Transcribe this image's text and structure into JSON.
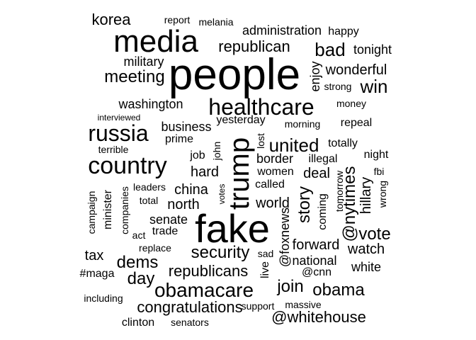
{
  "words": [
    "people",
    "fake",
    "media",
    "trump",
    "healthcare",
    "country",
    "russia",
    "obamacare",
    "united",
    "security",
    "meeting",
    "republican",
    "win",
    "bad",
    "congratulations",
    "@whitehouse",
    "obama",
    "@nytimes",
    "vote",
    "republicans",
    "story",
    "join",
    "dems",
    "day",
    "wonderful",
    "hard",
    "world",
    "korea",
    "north",
    "china",
    "business",
    "washington",
    "hillary",
    "watch",
    "forward",
    "national",
    "border",
    "deal",
    "white",
    "administration",
    "military",
    "senate",
    "women",
    "tax",
    "tonight",
    "enjoy",
    "totally",
    "repeal",
    "night",
    "job",
    "trade",
    "@foxnews",
    "happy",
    "clinton",
    "strong",
    "yesterday",
    "money",
    "called",
    "illegal",
    "prime",
    "minister",
    "coming",
    "@cnn",
    "tomorrow",
    "wrong",
    "#maga",
    "live",
    "support",
    "massive",
    "senators",
    "replace",
    "including",
    "report",
    "melania",
    "interviewed",
    "terrible",
    "leaders",
    "total",
    "companies",
    "campaign",
    "act",
    "sad",
    "votes",
    "john",
    "lost",
    "morning",
    "fbi"
  ]
}
